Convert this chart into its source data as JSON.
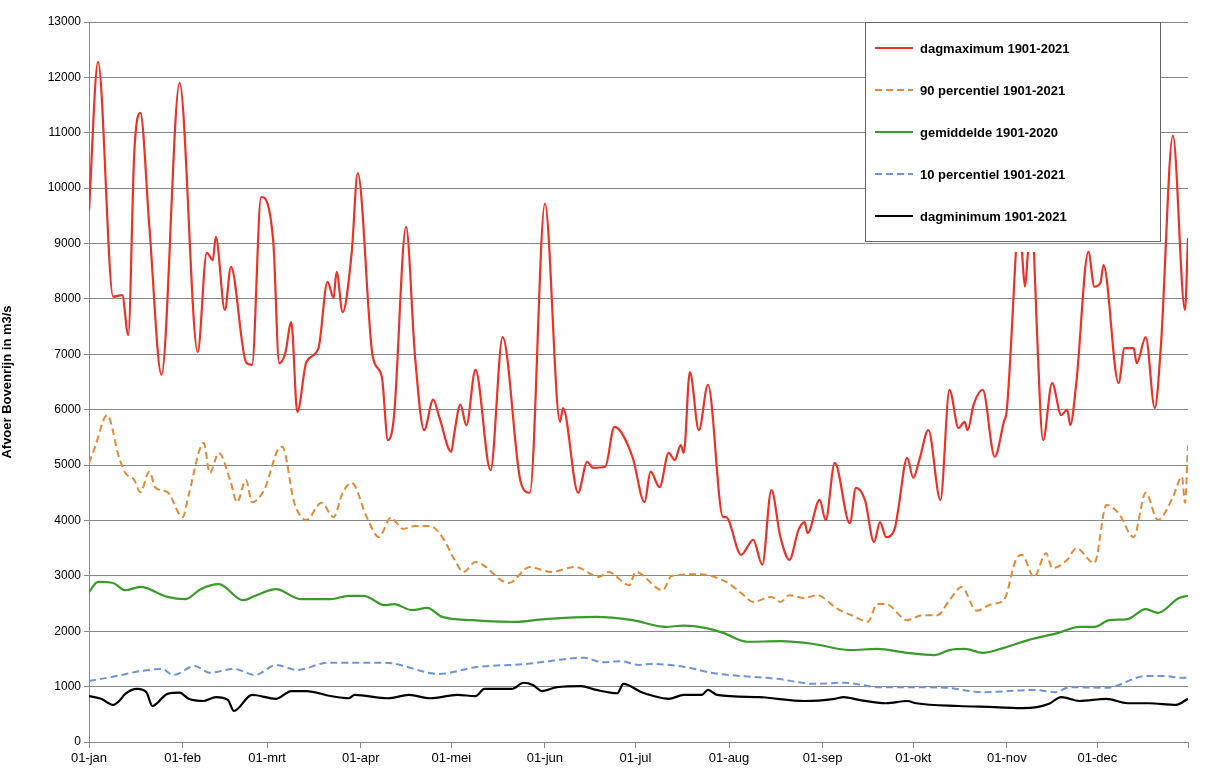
{
  "chart_data": {
    "type": "line",
    "ylabel": "Afvoer Bovenrijn in m3/s",
    "xlim": [
      "--01-01",
      "--12-31"
    ],
    "xticks": [
      {
        "value": "--01-01",
        "label": "01-jan"
      },
      {
        "value": "--02-01",
        "label": "01-feb"
      },
      {
        "value": "--03-01",
        "label": "01-mrt"
      },
      {
        "value": "--04-01",
        "label": "01-apr"
      },
      {
        "value": "--05-01",
        "label": "01-mei"
      },
      {
        "value": "--06-01",
        "label": "01-jun"
      },
      {
        "value": "--07-01",
        "label": "01-jul"
      },
      {
        "value": "--08-01",
        "label": "01-aug"
      },
      {
        "value": "--09-01",
        "label": "01-sep"
      },
      {
        "value": "--10-01",
        "label": "01-okt"
      },
      {
        "value": "--11-01",
        "label": "01-nov"
      },
      {
        "value": "--12-01",
        "label": "01-dec"
      },
      {
        "value": "--12-31",
        "label": null
      }
    ],
    "ylim": [
      0,
      13000
    ],
    "yticks": [
      0,
      1000,
      2000,
      3000,
      4000,
      5000,
      6000,
      7000,
      8000,
      9000,
      10000,
      11000,
      12000,
      13000
    ],
    "grid": "y",
    "legend": "top right",
    "marker": "none",
    "series": [
      {
        "name": "dagmaximum 1901-2021",
        "color": "#e8322a",
        "line_style": "solid",
        "x": [
          "--01-01",
          "--01-04",
          "--01-09",
          "--01-12",
          "--01-14",
          "--01-16",
          "--01-18",
          "--01-21",
          "--01-25",
          "--01-31",
          "--02-06",
          "--02-09",
          "--02-11",
          "--02-12",
          "--02-15",
          "--02-17",
          "--02-22",
          "--02-24",
          "--02-27",
          "--03-03",
          "--03-05",
          "--03-07",
          "--03-09",
          "--03-11",
          "--03-14",
          "--03-18",
          "--03-21",
          "--03-23",
          "--03-24",
          "--03-26",
          "--03-29",
          "--03-31",
          "--04-05",
          "--04-08",
          "--04-10",
          "--04-12",
          "--04-16",
          "--04-19",
          "--04-22",
          "--04-25",
          "--04-27",
          "--05-01",
          "--05-02",
          "--05-04",
          "--05-06",
          "--05-09",
          "--05-14",
          "--05-18",
          "--05-24",
          "--05-27",
          "--06-01",
          "--06-06",
          "--06-07",
          "--06-12",
          "--06-15",
          "--06-17",
          "--06-21",
          "--06-24",
          "--06-30",
          "--07-04",
          "--07-06",
          "--07-09",
          "--07-12",
          "--07-14",
          "--07-16",
          "--07-17",
          "--07-19",
          "--07-22",
          "--07-25",
          "--07-30",
          "--07-31",
          "--08-05",
          "--08-09",
          "--08-12",
          "--08-15",
          "--08-18",
          "--08-21",
          "--08-24",
          "--08-26",
          "--08-27",
          "--08-31",
          "--09-02",
          "--09-05",
          "--09-10",
          "--09-12",
          "--09-15",
          "--09-18",
          "--09-20",
          "--09-22",
          "--09-25",
          "--09-26",
          "--09-29",
          "--10-01",
          "--10-03",
          "--10-06",
          "--10-10",
          "--10-13",
          "--10-16",
          "--10-18",
          "--10-19",
          "--10-21",
          "--10-24",
          "--10-28",
          "--10-31",
          "--11-01",
          "--11-04",
          "--11-05",
          "--11-06",
          "--11-07",
          "--11-08",
          "--11-09",
          "--11-10",
          "--11-11",
          "--11-13",
          "--11-16",
          "--11-19",
          "--11-21",
          "--11-22",
          "--11-24",
          "--11-28",
          "--11-30",
          "--12-02",
          "--12-03",
          "--12-08",
          "--12-10",
          "--12-13",
          "--12-14",
          "--12-17",
          "--12-20",
          "--12-22",
          "--12-26",
          "--12-30",
          "--12-31"
        ],
        "values": [
          9600,
          12280,
          8040,
          8070,
          7350,
          10640,
          11360,
          9300,
          6630,
          11900,
          7040,
          8830,
          8700,
          9120,
          7800,
          8580,
          6860,
          6810,
          9840,
          9060,
          6840,
          7020,
          7580,
          5960,
          6860,
          7110,
          8310,
          8020,
          8490,
          7760,
          8830,
          10270,
          6950,
          6590,
          5450,
          5870,
          9300,
          6950,
          5630,
          6180,
          5870,
          5240,
          5580,
          6090,
          5720,
          6720,
          4910,
          7310,
          4690,
          4500,
          9720,
          5780,
          6030,
          4500,
          5060,
          4950,
          4970,
          5690,
          5150,
          4330,
          4880,
          4600,
          5220,
          5090,
          5360,
          5220,
          6680,
          5630,
          6450,
          4060,
          4060,
          3380,
          3650,
          3200,
          4550,
          3700,
          3290,
          3830,
          3970,
          3770,
          4370,
          4010,
          5040,
          3950,
          4590,
          4370,
          3610,
          3970,
          3700,
          3880,
          4190,
          5130,
          4770,
          5090,
          5630,
          4370,
          6360,
          5670,
          5780,
          5630,
          6090,
          6360,
          5150,
          5780,
          6000,
          8850,
          null,
          8850,
          8220,
          8850,
          null,
          8850,
          7380,
          5450,
          6480,
          5900,
          6000,
          5720,
          6480,
          8850,
          8220,
          8290,
          8610,
          6480,
          7110,
          7110,
          6840,
          7310,
          6030,
          7130,
          10950,
          7800,
          9100
        ]
      },
      {
        "name": "90 percentiel 1901-2021",
        "color": "#e08a3c",
        "line_style": "dashed",
        "x": [
          "--01-01",
          "--01-03",
          "--01-07",
          "--01-11",
          "--01-13",
          "--01-16",
          "--01-18",
          "--01-21",
          "--01-23",
          "--01-27",
          "--02-01",
          "--02-03",
          "--02-08",
          "--02-10",
          "--02-13",
          "--02-17",
          "--02-19",
          "--02-22",
          "--02-24",
          "--02-28",
          "--03-05",
          "--03-06",
          "--03-10",
          "--03-14",
          "--03-19",
          "--03-23",
          "--03-26",
          "--03-29",
          "--04-03",
          "--04-07",
          "--04-11",
          "--04-15",
          "--04-19",
          "--04-24",
          "--04-28",
          "--05-02",
          "--05-05",
          "--05-09",
          "--05-20",
          "--05-27",
          "--06-03",
          "--06-11",
          "--06-19",
          "--06-22",
          "--06-29",
          "--07-01",
          "--07-10",
          "--07-13",
          "--07-22",
          "--07-31",
          "--08-05",
          "--08-09",
          "--08-15",
          "--08-18",
          "--08-21",
          "--08-26",
          "--08-30",
          "--09-06",
          "--09-11",
          "--09-16",
          "--09-19",
          "--09-22",
          "--09-29",
          "--10-04",
          "--10-09",
          "--10-13",
          "--10-17",
          "--10-22",
          "--10-27",
          "--10-31",
          "--11-04",
          "--11-06",
          "--11-10",
          "--11-14",
          "--11-16",
          "--11-21",
          "--11-24",
          "--11-30",
          "--12-04",
          "--12-08",
          "--12-13",
          "--12-17",
          "--12-21",
          "--12-26",
          "--12-29",
          "--12-30",
          "--12-31"
        ],
        "values": [
          5040,
          5330,
          5900,
          5130,
          4860,
          4730,
          4510,
          4880,
          4590,
          4510,
          4060,
          4460,
          5400,
          4860,
          5220,
          4680,
          4330,
          4730,
          4330,
          4550,
          5310,
          5330,
          4320,
          4010,
          4320,
          4060,
          4500,
          4680,
          4060,
          3700,
          4050,
          3850,
          3900,
          3900,
          3700,
          3300,
          3070,
          3250,
          2870,
          3160,
          3070,
          3160,
          2980,
          3070,
          2830,
          3070,
          2740,
          3000,
          3030,
          2890,
          2690,
          2530,
          2620,
          2530,
          2650,
          2600,
          2650,
          2400,
          2280,
          2170,
          2490,
          2490,
          2200,
          2290,
          2290,
          2560,
          2800,
          2370,
          2490,
          2560,
          3290,
          3380,
          2980,
          3410,
          3140,
          3290,
          3500,
          3230,
          4280,
          4130,
          3700,
          4500,
          4010,
          4420,
          4790,
          4320,
          5360
        ]
      },
      {
        "name": "gemiddelde 1901-2020",
        "color": "#3a9a2c",
        "line_style": "solid",
        "x": [
          "--01-01",
          "--01-04",
          "--01-09",
          "--01-13",
          "--01-18",
          "--01-27",
          "--02-02",
          "--02-07",
          "--02-13",
          "--02-21",
          "--02-25",
          "--03-04",
          "--03-12",
          "--03-22",
          "--03-28",
          "--04-02",
          "--04-09",
          "--04-12",
          "--04-18",
          "--04-23",
          "--04-28",
          "--05-08",
          "--05-22",
          "--06-01",
          "--06-18",
          "--06-30",
          "--07-11",
          "--07-17",
          "--07-24",
          "--07-30",
          "--08-07",
          "--08-18",
          "--08-29",
          "--09-10",
          "--09-19",
          "--09-29",
          "--10-08",
          "--10-13",
          "--10-18",
          "--10-24",
          "--10-31",
          "--11-08",
          "--11-18",
          "--11-25",
          "--11-30",
          "--12-05",
          "--12-11",
          "--12-17",
          "--12-21",
          "--12-28",
          "--12-31"
        ],
        "values": [
          2710,
          2890,
          2870,
          2740,
          2800,
          2620,
          2580,
          2760,
          2850,
          2560,
          2640,
          2760,
          2580,
          2580,
          2640,
          2640,
          2470,
          2490,
          2380,
          2420,
          2260,
          2200,
          2170,
          2220,
          2260,
          2200,
          2080,
          2100,
          2060,
          1970,
          1810,
          1820,
          1770,
          1660,
          1680,
          1610,
          1570,
          1660,
          1680,
          1610,
          1700,
          1840,
          1970,
          2080,
          2080,
          2200,
          2220,
          2400,
          2330,
          2600,
          2640
        ]
      },
      {
        "name": "10 percentiel 1901-2021",
        "color": "#6f93d8",
        "line_style": "dashed",
        "x": [
          "--01-01",
          "--01-10",
          "--01-18",
          "--01-25",
          "--01-29",
          "--02-05",
          "--02-10",
          "--02-18",
          "--02-25",
          "--03-04",
          "--03-11",
          "--03-21",
          "--04-09",
          "--04-27",
          "--05-09",
          "--05-26",
          "--06-14",
          "--06-20",
          "--06-26",
          "--07-02",
          "--07-06",
          "--07-18",
          "--07-26",
          "--08-05",
          "--08-17",
          "--08-29",
          "--09-08",
          "--09-20",
          "--09-29",
          "--10-12",
          "--10-24",
          "--11-10",
          "--11-17",
          "--11-22",
          "--12-04",
          "--12-17",
          "--12-24",
          "--12-28",
          "--12-31"
        ],
        "values": [
          1100,
          1190,
          1280,
          1320,
          1210,
          1370,
          1250,
          1320,
          1210,
          1390,
          1300,
          1430,
          1430,
          1230,
          1350,
          1410,
          1520,
          1440,
          1460,
          1390,
          1410,
          1350,
          1250,
          1190,
          1140,
          1050,
          1070,
          990,
          990,
          980,
          900,
          940,
          900,
          990,
          980,
          1190,
          1190,
          1160,
          1160
        ]
      },
      {
        "name": "dagminimum 1901-2021",
        "color": "#000000",
        "line_style": "solid",
        "x": [
          "--01-01",
          "--01-05",
          "--01-09",
          "--01-11",
          "--01-13",
          "--01-17",
          "--01-20",
          "--01-22",
          "--01-27",
          "--01-31",
          "--02-03",
          "--02-08",
          "--02-12",
          "--02-16",
          "--02-18",
          "--02-24",
          "--03-04",
          "--03-09",
          "--03-14",
          "--03-22",
          "--03-28",
          "--03-30",
          "--04-10",
          "--04-17",
          "--04-24",
          "--05-03",
          "--05-09",
          "--05-12",
          "--05-21",
          "--05-25",
          "--05-28",
          "--05-31",
          "--06-05",
          "--06-13",
          "--06-18",
          "--06-25",
          "--06-27",
          "--07-03",
          "--07-07",
          "--07-12",
          "--07-17",
          "--07-23",
          "--07-25",
          "--07-28",
          "--08-11",
          "--08-26",
          "--09-05",
          "--09-08",
          "--09-13",
          "--09-22",
          "--09-29",
          "--10-02",
          "--10-16",
          "--10-28",
          "--11-06",
          "--11-11",
          "--11-15",
          "--11-19",
          "--11-25",
          "--12-04",
          "--12-11",
          "--12-18",
          "--12-27",
          "--12-31"
        ],
        "values": [
          830,
          780,
          670,
          740,
          870,
          960,
          900,
          650,
          870,
          890,
          780,
          740,
          810,
          760,
          560,
          850,
          780,
          920,
          920,
          830,
          790,
          850,
          790,
          850,
          790,
          850,
          830,
          960,
          960,
          1070,
          1030,
          920,
          990,
          1010,
          940,
          880,
          1050,
          900,
          830,
          780,
          850,
          850,
          940,
          850,
          810,
          740,
          780,
          810,
          760,
          700,
          740,
          700,
          650,
          630,
          610,
          630,
          690,
          810,
          740,
          780,
          700,
          700,
          670,
          780
        ]
      }
    ]
  }
}
